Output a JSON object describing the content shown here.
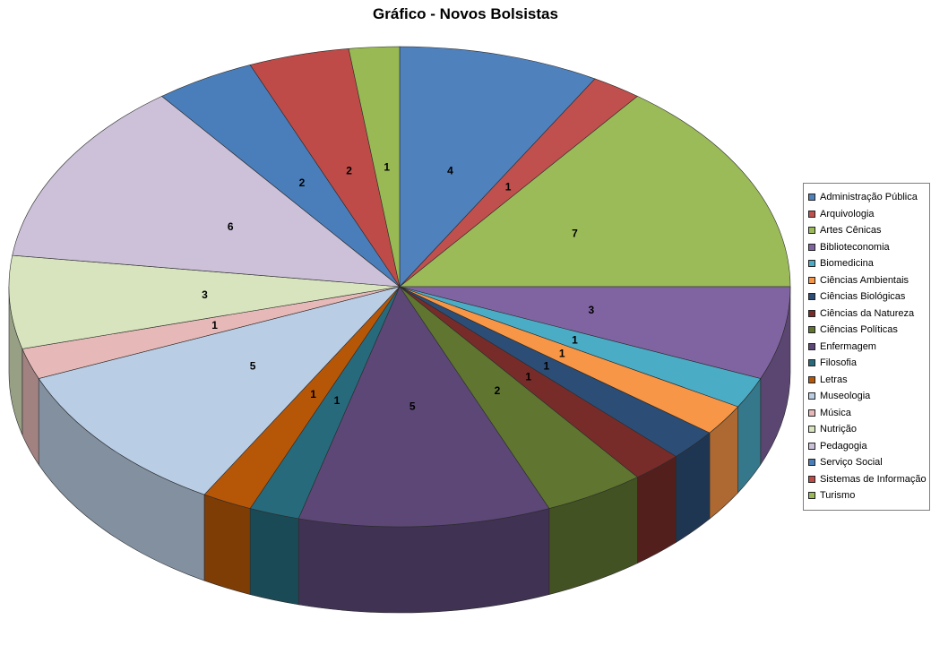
{
  "chart_data": {
    "type": "pie",
    "title": "Gráfico - Novos Bolsistas",
    "effect": "3d",
    "legend_position": "right",
    "data_labels": "values",
    "categories": [
      "Administração Pública",
      "Arquivologia",
      "Artes Cênicas",
      "Biblioteconomia",
      "Biomedicina",
      "Ciências Ambientais",
      "Ciências Biológicas",
      "Ciências da Natureza",
      "Ciências Políticas",
      "Enfermagem",
      "Filosofia",
      "Letras",
      "Museologia",
      "Música",
      "Nutrição",
      "Pedagogia",
      "Serviço Social",
      "Sistemas de Informação",
      "Turismo"
    ],
    "values": [
      4,
      1,
      7,
      3,
      1,
      1,
      1,
      1,
      2,
      5,
      1,
      1,
      5,
      1,
      3,
      6,
      2,
      2,
      1
    ],
    "colors": [
      "#4F81BD",
      "#C0504D",
      "#9BBB59",
      "#8064A2",
      "#4BACC6",
      "#F79646",
      "#2C4D75",
      "#772C2A",
      "#5F7530",
      "#5C4776",
      "#276A7C",
      "#B65708",
      "#B9CDE5",
      "#E6B9B8",
      "#D7E4BD",
      "#CCC1D9",
      "#4A7EBB",
      "#BE4B48",
      "#98B954"
    ]
  }
}
